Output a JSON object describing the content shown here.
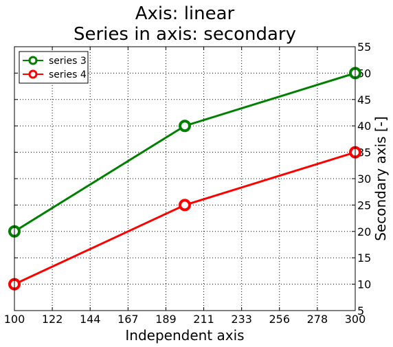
{
  "chart_data": {
    "type": "line",
    "title": [
      "Axis: linear",
      "Series in axis: secondary"
    ],
    "xlabel": "Independent axis",
    "ylabel": "Secondary axis [-]",
    "xlim": [
      100,
      300
    ],
    "ylim": [
      5,
      55
    ],
    "xticks": [
      "100",
      "122",
      "144",
      "167",
      "189",
      "211",
      "233",
      "256",
      "278",
      "300"
    ],
    "yticks": [
      "5",
      "10",
      "15",
      "20",
      "25",
      "30",
      "35",
      "40",
      "45",
      "50",
      "55"
    ],
    "grid": true,
    "legend_position": "top-left",
    "x": [
      100,
      200,
      300
    ],
    "series": [
      {
        "name": "series 3",
        "color": "#008000",
        "values": [
          20,
          40,
          50
        ]
      },
      {
        "name": "series 4",
        "color": "#ff0000",
        "values": [
          10,
          25,
          35
        ]
      }
    ]
  }
}
